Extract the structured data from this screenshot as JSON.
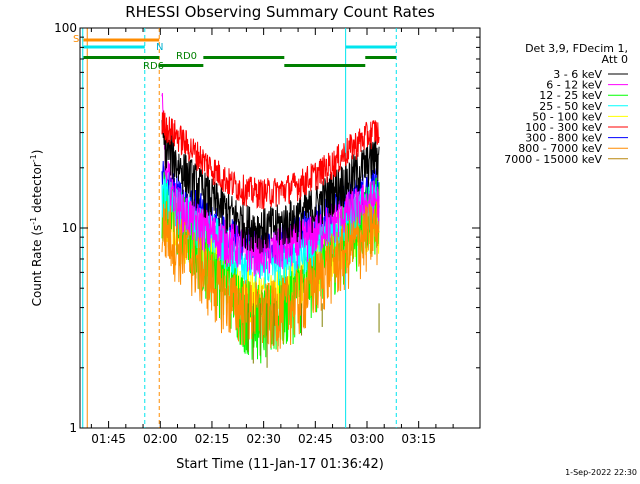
{
  "chart_data": {
    "type": "line",
    "title": "RHESSI Observing Summary Count Rates",
    "xlabel": "Start Time (11-Jan-17 01:36:42)",
    "ylabel": "Count Rate (s⁻¹ detector⁻¹)",
    "ylabel_main": "Count Rate (s",
    "ylabel_sup1": "-1",
    "ylabel_mid": " detector",
    "ylabel_sup2": "-1",
    "ylabel_end": ")",
    "yscale": "log",
    "xlim_minutes": [
      -23.3,
      92.8
    ],
    "ylim": [
      1,
      100
    ],
    "x_ticks": [
      {
        "min": -15,
        "label": "01:45"
      },
      {
        "min": 0,
        "label": "02:00"
      },
      {
        "min": 15,
        "label": "02:15"
      },
      {
        "min": 30,
        "label": "02:30"
      },
      {
        "min": 45,
        "label": "02:45"
      },
      {
        "min": 60,
        "label": "03:00"
      },
      {
        "min": 75,
        "label": "03:15"
      }
    ],
    "y_ticks": [
      {
        "value": 1,
        "label": "1"
      },
      {
        "value": 10,
        "label": "10"
      },
      {
        "value": 100,
        "label": "100"
      }
    ],
    "legend_header": [
      "Det 3,9, FDecim 1,",
      "Att 0"
    ],
    "legend_position": "right",
    "series": [
      {
        "name": "3 - 6 keV",
        "color": "#000000",
        "x": [
          0.5,
          2,
          5,
          10,
          15,
          20,
          25,
          30,
          35,
          40,
          45,
          50,
          55,
          60,
          62.5,
          63.5
        ],
        "y": [
          28,
          25,
          21,
          17,
          14,
          12,
          10.5,
          10,
          10.5,
          11.5,
          13,
          15.5,
          18,
          21,
          23,
          22
        ]
      },
      {
        "name": "6 - 12 keV",
        "color": "#ff00ff",
        "x": [
          0.5,
          2,
          5,
          10,
          15,
          20,
          25,
          30,
          35,
          40,
          45,
          50,
          55,
          60,
          62.5,
          63.5
        ],
        "y": [
          40,
          18,
          13,
          11,
          9.5,
          8.5,
          8,
          7.5,
          8,
          8.5,
          9.5,
          11,
          12.5,
          13.5,
          14,
          13
        ]
      },
      {
        "name": "12 - 25 keV",
        "color": "#00ff00",
        "x": [
          0.5,
          2,
          5,
          10,
          15,
          20,
          25,
          30,
          35,
          40,
          45,
          50,
          55,
          60,
          62.5,
          63.5
        ],
        "y": [
          14,
          13,
          11,
          9,
          7,
          5.5,
          4,
          3.5,
          4,
          5,
          6.5,
          8,
          10,
          12,
          13,
          12
        ]
      },
      {
        "name": "25 - 50 keV",
        "color": "#00ffff",
        "x": [
          0.5,
          2,
          5,
          10,
          15,
          20,
          25,
          30,
          35,
          40,
          45,
          50,
          55,
          60,
          62.5,
          63.5
        ],
        "y": [
          15,
          14,
          12.5,
          11,
          9.5,
          8,
          7,
          6.5,
          7,
          7.5,
          8.5,
          10,
          11.5,
          13,
          13.5,
          12.5
        ]
      },
      {
        "name": "50 - 100 keV",
        "color": "#ffff00",
        "x": [
          0.5,
          2,
          5,
          10,
          15,
          20,
          25,
          30,
          35,
          40,
          45,
          50,
          55,
          60,
          62.5,
          63.5
        ],
        "y": [
          12,
          11.5,
          10.5,
          9,
          7.5,
          6,
          5,
          4.5,
          5,
          5.5,
          6.5,
          8,
          9.5,
          11,
          11.5,
          11
        ]
      },
      {
        "name": "100 - 300 keV",
        "color": "#ff0000",
        "x": [
          0.5,
          2,
          5,
          10,
          15,
          20,
          25,
          30,
          35,
          40,
          45,
          50,
          55,
          60,
          62.5,
          63.5
        ],
        "y": [
          34,
          32,
          29,
          24,
          20,
          17,
          15.5,
          15,
          15.5,
          16.5,
          18.5,
          21,
          25,
          29,
          31,
          29
        ]
      },
      {
        "name": "300 - 800 keV",
        "color": "#0000ff",
        "x": [
          0.5,
          2,
          5,
          10,
          15,
          20,
          25,
          30,
          35,
          40,
          45,
          50,
          55,
          60,
          62.5,
          63.5
        ],
        "y": [
          18,
          17,
          15,
          13,
          11,
          9.5,
          8.5,
          8,
          8.5,
          9.5,
          11,
          12.5,
          14,
          16,
          17,
          16
        ]
      },
      {
        "name": "800 - 7000 keV",
        "color": "#ff8c00",
        "x": [
          0.5,
          2,
          5,
          10,
          15,
          20,
          25,
          30,
          35,
          40,
          45,
          50,
          55,
          60,
          62.5,
          63.5
        ],
        "y": [
          10.5,
          10,
          8.5,
          7,
          5.5,
          4.5,
          4,
          3.8,
          4,
          4.5,
          5.5,
          6.8,
          8,
          9.5,
          10,
          10
        ]
      },
      {
        "name": "7000 - 15000 keV",
        "color": "#b8860b",
        "x": [],
        "y": []
      }
    ],
    "status_bars": {
      "saa_label": "S",
      "night_label": "N",
      "rd0_label": "RD0",
      "rd6_label": "RD6"
    },
    "footer_date": "1-Sep-2022 22:30"
  }
}
